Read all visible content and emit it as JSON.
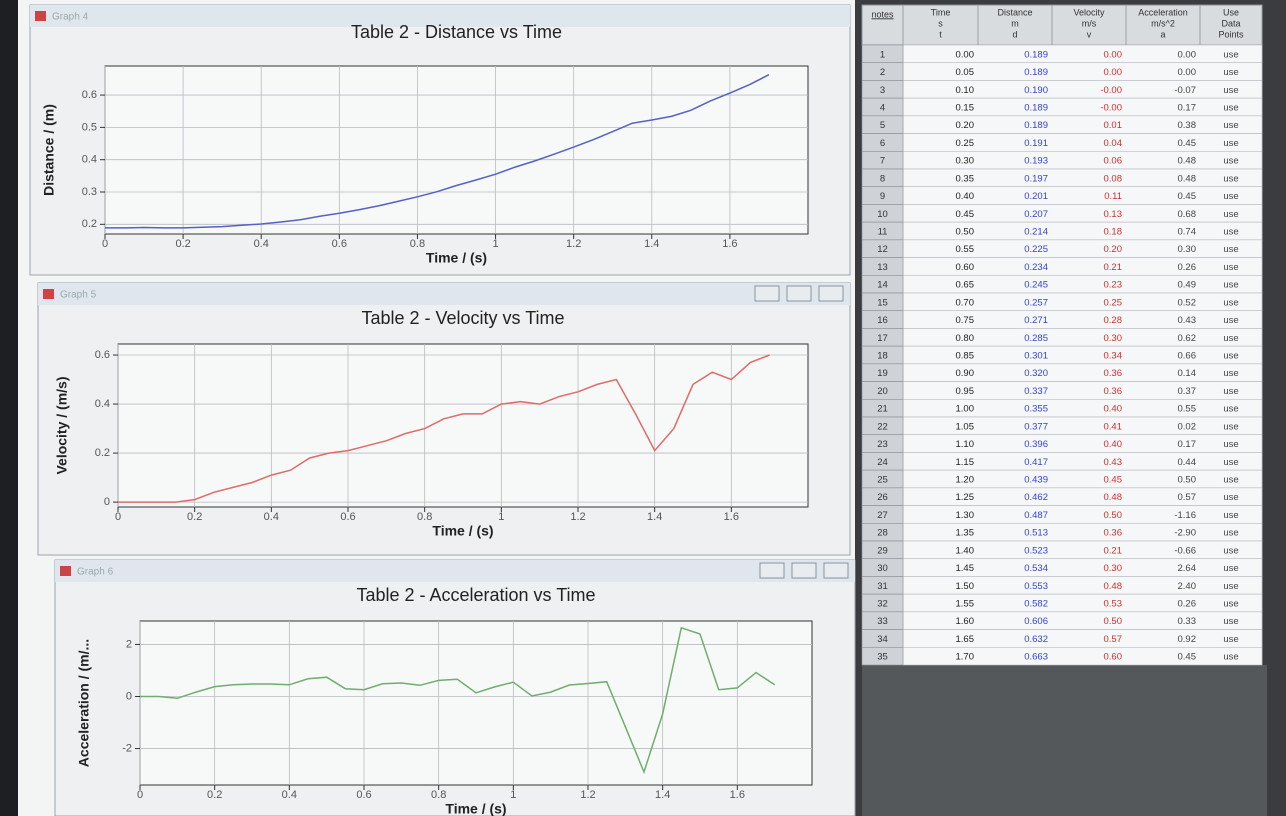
{
  "graphs": [
    {
      "window_title": "Graph 4",
      "title": "Table 2 - Distance vs Time",
      "x_label": "Time / (s)",
      "y_label": "Distance / (m)",
      "column": 2,
      "color": "#5560c8",
      "xlim": [
        0,
        1.8
      ],
      "xticks": [
        0,
        0.2,
        0.4,
        0.6,
        0.8,
        1,
        1.2,
        1.4,
        1.6
      ],
      "ylim": [
        0.17,
        0.69
      ],
      "yticks": [
        0.2,
        0.3,
        0.4,
        0.5,
        0.6
      ],
      "grid": true
    },
    {
      "window_title": "Graph 5",
      "title": "Table 2 - Velocity vs Time",
      "x_label": "Time / (s)",
      "y_label": "Velocity / (m/s)",
      "column": 3,
      "color": "#e06a6a",
      "xlim": [
        0,
        1.8
      ],
      "xticks": [
        0,
        0.2,
        0.4,
        0.6,
        0.8,
        1,
        1.2,
        1.4,
        1.6
      ],
      "ylim": [
        -0.02,
        0.645
      ],
      "yticks": [
        0,
        0.2,
        0.4,
        0.6
      ],
      "grid": true
    },
    {
      "window_title": "Graph 6",
      "title": "Table 2 - Acceleration vs Time",
      "x_label": "Time / (s)",
      "y_label": "Acceleration / (m/...",
      "column": 4,
      "color": "#6fae6f",
      "xlim": [
        0,
        1.8
      ],
      "xticks": [
        0,
        0.2,
        0.4,
        0.6,
        0.8,
        1,
        1.2,
        1.4,
        1.6
      ],
      "ylim": [
        -3.4,
        2.9
      ],
      "yticks": [
        -2,
        0,
        2
      ],
      "grid": true
    }
  ],
  "table": {
    "columns": [
      [
        "notes"
      ],
      [
        "Time",
        "s",
        "t"
      ],
      [
        "Distance",
        "m",
        "d"
      ],
      [
        "Velocity",
        "m/s",
        "v"
      ],
      [
        "Acceleration",
        "m/s^2",
        "a"
      ],
      [
        "Use",
        "Data",
        "Points"
      ]
    ],
    "rows": [
      [
        1,
        "0.00",
        "0.189",
        "0.00",
        "0.00",
        "use"
      ],
      [
        2,
        "0.05",
        "0.189",
        "0.00",
        "0.00",
        "use"
      ],
      [
        3,
        "0.10",
        "0.190",
        "-0.00",
        "-0.07",
        "use"
      ],
      [
        4,
        "0.15",
        "0.189",
        "-0.00",
        "0.17",
        "use"
      ],
      [
        5,
        "0.20",
        "0.189",
        "0.01",
        "0.38",
        "use"
      ],
      [
        6,
        "0.25",
        "0.191",
        "0.04",
        "0.45",
        "use"
      ],
      [
        7,
        "0.30",
        "0.193",
        "0.06",
        "0.48",
        "use"
      ],
      [
        8,
        "0.35",
        "0.197",
        "0.08",
        "0.48",
        "use"
      ],
      [
        9,
        "0.40",
        "0.201",
        "0.11",
        "0.45",
        "use"
      ],
      [
        10,
        "0.45",
        "0.207",
        "0.13",
        "0.68",
        "use"
      ],
      [
        11,
        "0.50",
        "0.214",
        "0.18",
        "0.74",
        "use"
      ],
      [
        12,
        "0.55",
        "0.225",
        "0.20",
        "0.30",
        "use"
      ],
      [
        13,
        "0.60",
        "0.234",
        "0.21",
        "0.26",
        "use"
      ],
      [
        14,
        "0.65",
        "0.245",
        "0.23",
        "0.49",
        "use"
      ],
      [
        15,
        "0.70",
        "0.257",
        "0.25",
        "0.52",
        "use"
      ],
      [
        16,
        "0.75",
        "0.271",
        "0.28",
        "0.43",
        "use"
      ],
      [
        17,
        "0.80",
        "0.285",
        "0.30",
        "0.62",
        "use"
      ],
      [
        18,
        "0.85",
        "0.301",
        "0.34",
        "0.66",
        "use"
      ],
      [
        19,
        "0.90",
        "0.320",
        "0.36",
        "0.14",
        "use"
      ],
      [
        20,
        "0.95",
        "0.337",
        "0.36",
        "0.37",
        "use"
      ],
      [
        21,
        "1.00",
        "0.355",
        "0.40",
        "0.55",
        "use"
      ],
      [
        22,
        "1.05",
        "0.377",
        "0.41",
        "0.02",
        "use"
      ],
      [
        23,
        "1.10",
        "0.396",
        "0.40",
        "0.17",
        "use"
      ],
      [
        24,
        "1.15",
        "0.417",
        "0.43",
        "0.44",
        "use"
      ],
      [
        25,
        "1.20",
        "0.439",
        "0.45",
        "0.50",
        "use"
      ],
      [
        26,
        "1.25",
        "0.462",
        "0.48",
        "0.57",
        "use"
      ],
      [
        27,
        "1.30",
        "0.487",
        "0.50",
        "-1.16",
        "use"
      ],
      [
        28,
        "1.35",
        "0.513",
        "0.36",
        "-2.90",
        "use"
      ],
      [
        29,
        "1.40",
        "0.523",
        "0.21",
        "-0.66",
        "use"
      ],
      [
        30,
        "1.45",
        "0.534",
        "0.30",
        "2.64",
        "use"
      ],
      [
        31,
        "1.50",
        "0.553",
        "0.48",
        "2.40",
        "use"
      ],
      [
        32,
        "1.55",
        "0.582",
        "0.53",
        "0.26",
        "use"
      ],
      [
        33,
        "1.60",
        "0.606",
        "0.50",
        "0.33",
        "use"
      ],
      [
        34,
        "1.65",
        "0.632",
        "0.57",
        "0.92",
        "use"
      ],
      [
        35,
        "1.70",
        "0.663",
        "0.60",
        "0.45",
        "use"
      ]
    ]
  }
}
